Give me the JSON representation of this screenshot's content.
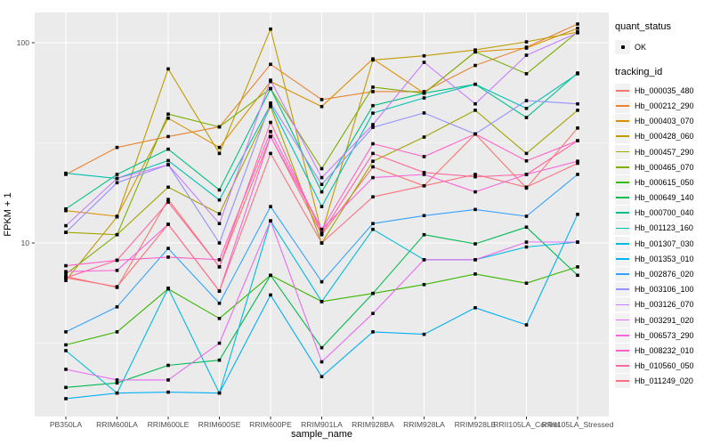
{
  "chart_data": {
    "type": "line",
    "title": "",
    "xlabel": "sample_name",
    "ylabel": "FPKM + 1",
    "y_scale": "log10",
    "ylim": [
      1.36,
      141.6
    ],
    "y_ticks": [
      {
        "value": 10,
        "label": "10"
      },
      {
        "value": 100,
        "label": "100"
      }
    ],
    "y_minor": [
      3.1623,
      31.623
    ],
    "grid": "on",
    "legend_position": "right",
    "panel_bg": "#EBEBEB",
    "grid_color": "#FFFFFF",
    "point_color": "#000000",
    "tick_text_color": "#4D4D4D",
    "axis_title_color": "#000000",
    "categories": [
      "PB350LA",
      "RRIM600LA",
      "RRIM600LE",
      "RRIM600SE",
      "RRIM600PE",
      "RRIM901LA",
      "RRIM928BA",
      "RRIM928LA",
      "RRIM928LE",
      "RRII105LA_Control",
      "RRII105LA_Stressed"
    ],
    "legend": {
      "quant_status_title": "quant_status",
      "quant_status_items": [
        {
          "label": "OK",
          "symbol": "point-marker"
        }
      ],
      "tracking_id_title": "tracking_id"
    },
    "series": [
      {
        "name": "Hb_000035_480",
        "color": "#F8766D",
        "values": [
          6.8,
          6.0,
          16.5,
          7.6,
          34,
          11,
          24,
          19.3,
          35,
          18.8,
          37.5
        ]
      },
      {
        "name": "Hb_000212_290",
        "color": "#EA8331",
        "values": [
          22,
          30,
          34,
          38,
          78,
          52,
          57,
          57,
          77,
          95,
          124
        ]
      },
      {
        "name": "Hb_000403_070",
        "color": "#D89000",
        "values": [
          14.5,
          13.6,
          42,
          30,
          64,
          48,
          83,
          56,
          90,
          94,
          118
        ]
      },
      {
        "name": "Hb_000428_060",
        "color": "#C09B00",
        "values": [
          6.5,
          13.5,
          74,
          28,
          117,
          11.2,
          82,
          86,
          92,
          101,
          113
        ]
      },
      {
        "name": "Hb_000457_290",
        "color": "#A3A500",
        "values": [
          11.3,
          11,
          19,
          14,
          48,
          10,
          25.6,
          33.8,
          46,
          28,
          46
        ]
      },
      {
        "name": "Hb_000465_070",
        "color": "#7CAE00",
        "values": [
          7.0,
          11,
          44,
          38,
          59,
          23.5,
          60,
          56,
          90,
          70,
          113
        ]
      },
      {
        "name": "Hb_000615_050",
        "color": "#39B600",
        "values": [
          3.1,
          3.6,
          5.9,
          4.2,
          6.9,
          5.1,
          5.6,
          6.2,
          7.0,
          6.3,
          7.6
        ]
      },
      {
        "name": "Hb_000649_140",
        "color": "#00BB4E",
        "values": [
          1.9,
          2.0,
          2.45,
          2.6,
          6.9,
          3.0,
          5.6,
          11,
          9.9,
          12,
          6.9
        ]
      },
      {
        "name": "Hb_000700_040",
        "color": "#00C087",
        "values": [
          14.8,
          22,
          29.4,
          18.4,
          59,
          18,
          48.5,
          56,
          62,
          42.3,
          70.6
        ]
      },
      {
        "name": "Hb_001123_160",
        "color": "#00C0B2",
        "values": [
          22.3,
          21,
          25.8,
          16.4,
          49,
          15.2,
          44.5,
          53,
          62,
          47,
          70
        ]
      },
      {
        "name": "Hb_001307_030",
        "color": "#00BCD8",
        "values": [
          2.9,
          1.78,
          5.95,
          1.78,
          12.9,
          5.1,
          11.7,
          8.25,
          8.25,
          9.55,
          10.1
        ]
      },
      {
        "name": "Hb_001353_010",
        "color": "#00B0F6",
        "values": [
          1.67,
          1.78,
          1.8,
          1.78,
          5.5,
          2.15,
          3.6,
          3.5,
          4.75,
          3.9,
          13.9
        ]
      },
      {
        "name": "Hb_002876_020",
        "color": "#35A2FF",
        "values": [
          3.6,
          4.8,
          9.4,
          5.0,
          15.2,
          6.4,
          12.5,
          13.7,
          14.7,
          13.6,
          22
        ]
      },
      {
        "name": "Hb_003106_100",
        "color": "#9590FF",
        "values": [
          11.3,
          20,
          24.6,
          10,
          50,
          19.6,
          37.8,
          44.6,
          35,
          51.4,
          49.5
        ]
      },
      {
        "name": "Hb_003126_070",
        "color": "#C77CFF",
        "values": [
          12.2,
          21,
          24.6,
          12.5,
          65,
          21.2,
          39,
          79.8,
          49.5,
          86.6,
          112
        ]
      },
      {
        "name": "Hb_003291_020",
        "color": "#E76BF3",
        "values": [
          2.34,
          2.07,
          2.07,
          3.16,
          12.9,
          2.55,
          4.45,
          8.25,
          8.25,
          10.1,
          10.1
        ]
      },
      {
        "name": "Hb_006573_290",
        "color": "#FA62DB",
        "values": [
          7.2,
          7.3,
          12.4,
          5.75,
          34,
          11.7,
          21.2,
          22,
          18,
          22,
          25.6
        ]
      },
      {
        "name": "Hb_008232_010",
        "color": "#FF61C9",
        "values": [
          7.7,
          8.2,
          8.5,
          8.25,
          36,
          11.7,
          31.3,
          27,
          35,
          25.7,
          32.4
        ]
      },
      {
        "name": "Hb_010560_050",
        "color": "#FF68A1",
        "values": [
          6.7,
          8.2,
          16,
          7.6,
          40,
          11.2,
          28,
          22.5,
          21.4,
          22,
          32.4
        ]
      },
      {
        "name": "Hb_011249_020",
        "color": "#FC717F",
        "values": [
          6.7,
          6.05,
          12.4,
          5.75,
          28,
          10,
          17,
          19.3,
          22,
          19,
          25
        ]
      }
    ]
  }
}
